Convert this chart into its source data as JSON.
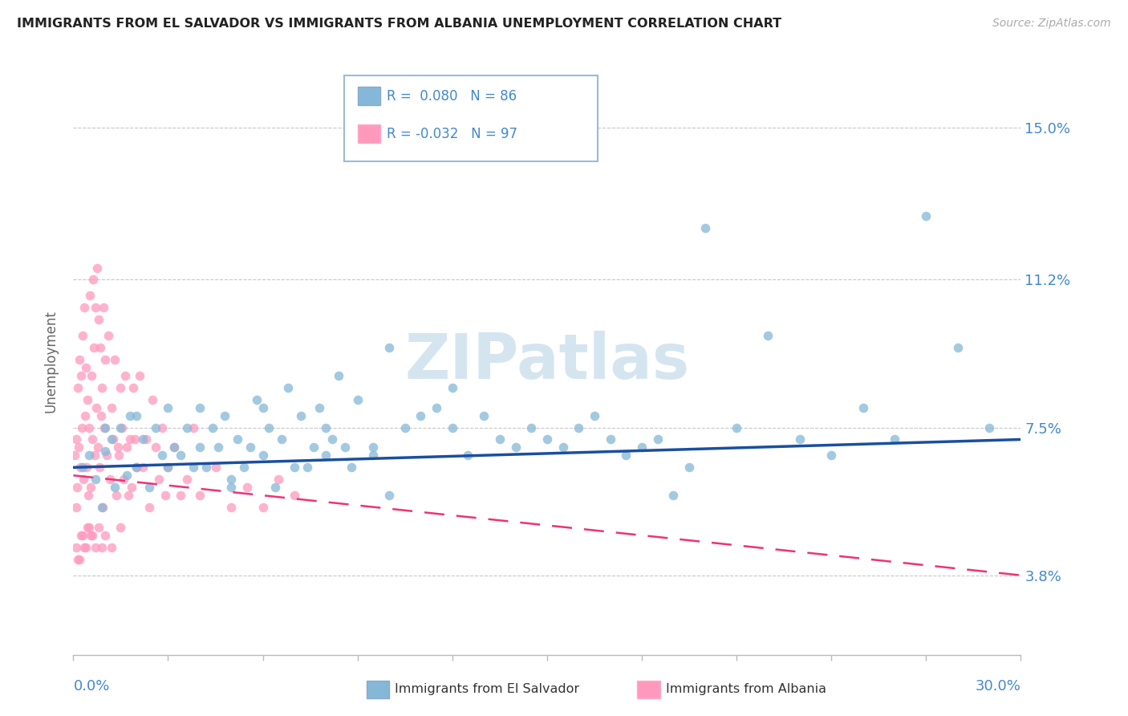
{
  "title": "IMMIGRANTS FROM EL SALVADOR VS IMMIGRANTS FROM ALBANIA UNEMPLOYMENT CORRELATION CHART",
  "source": "Source: ZipAtlas.com",
  "ylabel": "Unemployment",
  "xmin": 0.0,
  "xmax": 30.0,
  "ymin": 1.8,
  "ymax": 16.5,
  "yticks": [
    3.8,
    7.5,
    11.2,
    15.0
  ],
  "ytick_labels": [
    "3.8%",
    "7.5%",
    "11.2%",
    "15.0%"
  ],
  "el_salvador_color": "#85b8d8",
  "albania_color": "#ff99bb",
  "el_salvador_line_color": "#1a4f9f",
  "albania_line_color": "#ee3377",
  "watermark": "ZIPatlas",
  "watermark_color": "#d5e5f0",
  "background_color": "#ffffff",
  "grid_color": "#c8c8c8",
  "title_color": "#222222",
  "axis_label_color": "#4488cc",
  "legend_R1": "R =  0.080",
  "legend_N1": "N = 86",
  "legend_R2": "R = -0.032",
  "legend_N2": "N = 97",
  "el_salvador_data": [
    [
      0.3,
      6.5
    ],
    [
      0.5,
      6.8
    ],
    [
      0.7,
      6.2
    ],
    [
      0.9,
      5.5
    ],
    [
      1.0,
      6.9
    ],
    [
      1.2,
      7.2
    ],
    [
      1.3,
      6.0
    ],
    [
      1.5,
      7.5
    ],
    [
      1.7,
      6.3
    ],
    [
      1.8,
      7.8
    ],
    [
      2.0,
      6.5
    ],
    [
      2.2,
      7.2
    ],
    [
      2.4,
      6.0
    ],
    [
      2.6,
      7.5
    ],
    [
      2.8,
      6.8
    ],
    [
      3.0,
      6.5
    ],
    [
      3.2,
      7.0
    ],
    [
      3.4,
      6.8
    ],
    [
      3.6,
      7.5
    ],
    [
      3.8,
      6.5
    ],
    [
      4.0,
      8.0
    ],
    [
      4.2,
      6.5
    ],
    [
      4.4,
      7.5
    ],
    [
      4.6,
      7.0
    ],
    [
      4.8,
      7.8
    ],
    [
      5.0,
      6.2
    ],
    [
      5.2,
      7.2
    ],
    [
      5.4,
      6.5
    ],
    [
      5.6,
      7.0
    ],
    [
      5.8,
      8.2
    ],
    [
      6.0,
      6.8
    ],
    [
      6.2,
      7.5
    ],
    [
      6.4,
      6.0
    ],
    [
      6.6,
      7.2
    ],
    [
      6.8,
      8.5
    ],
    [
      7.0,
      6.5
    ],
    [
      7.2,
      7.8
    ],
    [
      7.4,
      6.5
    ],
    [
      7.6,
      7.0
    ],
    [
      7.8,
      8.0
    ],
    [
      8.0,
      6.8
    ],
    [
      8.2,
      7.2
    ],
    [
      8.4,
      8.8
    ],
    [
      8.6,
      7.0
    ],
    [
      8.8,
      6.5
    ],
    [
      9.0,
      8.2
    ],
    [
      9.5,
      7.0
    ],
    [
      10.0,
      9.5
    ],
    [
      10.5,
      7.5
    ],
    [
      11.0,
      7.8
    ],
    [
      11.5,
      8.0
    ],
    [
      12.0,
      7.5
    ],
    [
      12.5,
      6.8
    ],
    [
      13.0,
      7.8
    ],
    [
      13.5,
      7.2
    ],
    [
      14.0,
      7.0
    ],
    [
      14.5,
      7.5
    ],
    [
      15.0,
      7.2
    ],
    [
      15.5,
      7.0
    ],
    [
      16.0,
      7.5
    ],
    [
      16.5,
      7.8
    ],
    [
      17.0,
      7.2
    ],
    [
      17.5,
      6.8
    ],
    [
      18.0,
      7.0
    ],
    [
      18.5,
      7.2
    ],
    [
      19.0,
      5.8
    ],
    [
      19.5,
      6.5
    ],
    [
      20.0,
      12.5
    ],
    [
      21.0,
      7.5
    ],
    [
      22.0,
      9.8
    ],
    [
      23.0,
      7.2
    ],
    [
      24.0,
      6.8
    ],
    [
      25.0,
      8.0
    ],
    [
      26.0,
      7.2
    ],
    [
      27.0,
      12.8
    ],
    [
      28.0,
      9.5
    ],
    [
      29.0,
      7.5
    ],
    [
      10.0,
      5.8
    ],
    [
      5.0,
      6.0
    ],
    [
      9.5,
      6.8
    ],
    [
      12.0,
      8.5
    ],
    [
      1.0,
      7.5
    ],
    [
      2.0,
      7.8
    ],
    [
      3.0,
      8.0
    ],
    [
      4.0,
      7.0
    ],
    [
      6.0,
      8.0
    ],
    [
      8.0,
      7.5
    ]
  ],
  "albania_data": [
    [
      0.05,
      6.8
    ],
    [
      0.08,
      5.5
    ],
    [
      0.1,
      7.2
    ],
    [
      0.12,
      6.0
    ],
    [
      0.15,
      8.5
    ],
    [
      0.18,
      7.0
    ],
    [
      0.2,
      9.2
    ],
    [
      0.22,
      6.5
    ],
    [
      0.25,
      8.8
    ],
    [
      0.28,
      7.5
    ],
    [
      0.3,
      9.8
    ],
    [
      0.32,
      6.2
    ],
    [
      0.35,
      10.5
    ],
    [
      0.38,
      7.8
    ],
    [
      0.4,
      9.0
    ],
    [
      0.42,
      6.5
    ],
    [
      0.45,
      8.2
    ],
    [
      0.48,
      5.8
    ],
    [
      0.5,
      7.5
    ],
    [
      0.52,
      10.8
    ],
    [
      0.55,
      6.0
    ],
    [
      0.58,
      8.8
    ],
    [
      0.6,
      7.2
    ],
    [
      0.62,
      11.2
    ],
    [
      0.65,
      9.5
    ],
    [
      0.68,
      6.8
    ],
    [
      0.7,
      10.5
    ],
    [
      0.72,
      8.0
    ],
    [
      0.75,
      11.5
    ],
    [
      0.78,
      7.0
    ],
    [
      0.8,
      10.2
    ],
    [
      0.82,
      6.5
    ],
    [
      0.85,
      9.5
    ],
    [
      0.88,
      7.8
    ],
    [
      0.9,
      8.5
    ],
    [
      0.92,
      5.5
    ],
    [
      0.95,
      10.5
    ],
    [
      0.98,
      7.5
    ],
    [
      1.0,
      9.2
    ],
    [
      1.05,
      6.8
    ],
    [
      1.1,
      9.8
    ],
    [
      1.15,
      6.2
    ],
    [
      1.2,
      8.0
    ],
    [
      1.25,
      7.2
    ],
    [
      1.3,
      9.2
    ],
    [
      1.35,
      5.8
    ],
    [
      1.4,
      7.0
    ],
    [
      1.45,
      6.8
    ],
    [
      1.5,
      8.5
    ],
    [
      1.55,
      7.5
    ],
    [
      1.6,
      6.2
    ],
    [
      1.65,
      8.8
    ],
    [
      1.7,
      7.0
    ],
    [
      1.75,
      5.8
    ],
    [
      1.8,
      7.2
    ],
    [
      1.85,
      6.0
    ],
    [
      1.9,
      8.5
    ],
    [
      1.95,
      7.2
    ],
    [
      2.0,
      6.5
    ],
    [
      2.1,
      8.8
    ],
    [
      2.2,
      6.5
    ],
    [
      2.3,
      7.2
    ],
    [
      2.4,
      5.5
    ],
    [
      2.5,
      8.2
    ],
    [
      2.6,
      7.0
    ],
    [
      2.7,
      6.2
    ],
    [
      2.8,
      7.5
    ],
    [
      2.9,
      5.8
    ],
    [
      3.0,
      6.5
    ],
    [
      3.2,
      7.0
    ],
    [
      3.4,
      5.8
    ],
    [
      3.6,
      6.2
    ],
    [
      3.8,
      7.5
    ],
    [
      4.0,
      5.8
    ],
    [
      4.5,
      6.5
    ],
    [
      5.0,
      5.5
    ],
    [
      5.5,
      6.0
    ],
    [
      6.0,
      5.5
    ],
    [
      6.5,
      6.2
    ],
    [
      7.0,
      5.8
    ],
    [
      0.1,
      4.5
    ],
    [
      0.2,
      4.2
    ],
    [
      0.3,
      4.8
    ],
    [
      0.4,
      4.5
    ],
    [
      0.5,
      5.0
    ],
    [
      0.6,
      4.8
    ],
    [
      0.7,
      4.5
    ],
    [
      0.8,
      5.0
    ],
    [
      0.9,
      4.5
    ],
    [
      1.0,
      4.8
    ],
    [
      1.2,
      4.5
    ],
    [
      1.5,
      5.0
    ],
    [
      0.15,
      4.2
    ],
    [
      0.25,
      4.8
    ],
    [
      0.35,
      4.5
    ],
    [
      0.45,
      5.0
    ],
    [
      0.55,
      4.8
    ]
  ]
}
